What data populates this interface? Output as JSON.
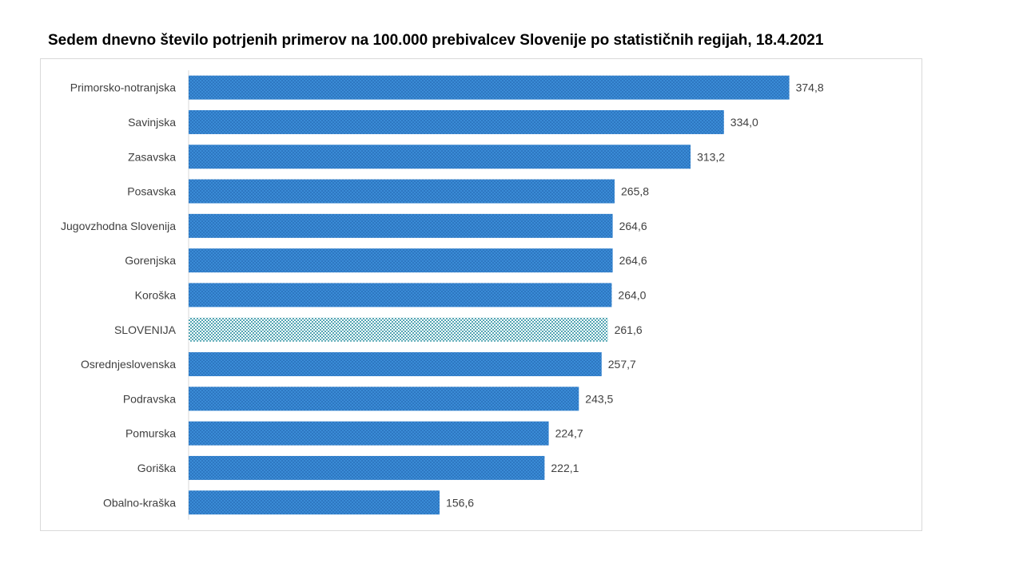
{
  "chart_data": {
    "type": "bar",
    "orientation": "horizontal",
    "title": "Sedem dnevno število potrjenih primerov na 100.000  prebivalcev Slovenije po statističnih regijah, 18.4.2021",
    "xlabel": "",
    "ylabel": "",
    "categories": [
      "Primorsko-notranjska",
      "Savinjska",
      "Zasavska",
      "Posavska",
      "Jugovzhodna Slovenija",
      "Gorenjska",
      "Koroška",
      "SLOVENIJA",
      "Osrednjeslovenska",
      "Podravska",
      "Pomurska",
      "Goriška",
      "Obalno-kraška"
    ],
    "values": [
      374.8,
      334.0,
      313.2,
      265.8,
      264.6,
      264.6,
      264.0,
      261.6,
      257.7,
      243.5,
      224.7,
      222.1,
      156.6
    ],
    "value_labels": [
      "374,8",
      "334,0",
      "313,2",
      "265,8",
      "264,6",
      "264,6",
      "264,0",
      "261,6",
      "257,7",
      "243,5",
      "224,7",
      "222,1",
      "156,6"
    ],
    "highlight_category": "SLOVENIJA",
    "xlim": [
      0,
      375
    ],
    "grid": false,
    "legend": "none",
    "colors": {
      "bar": "#3a8bd6",
      "bar_dot": "#1f5fa8",
      "highlight_bg": "#ffffff",
      "highlight_dot": "#1d8a9c"
    }
  }
}
